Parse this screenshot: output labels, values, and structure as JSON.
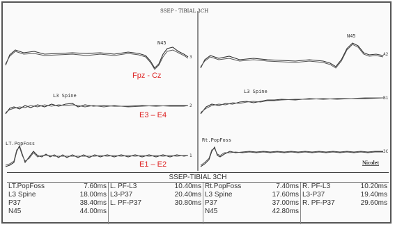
{
  "window": {
    "title": "SSEP - TIBIAL 3CH"
  },
  "left_panel": {
    "labels": {
      "n45": "N45",
      "l3_spine": "L3 Spine",
      "popfoss": "LT.PopFoss",
      "fpz_cz": "Fpz - Cz",
      "e3_e4": "E3 – E4",
      "e1_e2": "E1 – E2"
    },
    "channel_numbers": [
      "3",
      "2",
      "1"
    ]
  },
  "right_panel": {
    "labels": {
      "n45": "N45",
      "l3_spine": "L3 Spine",
      "popfoss": "Rt.PopFoss"
    },
    "channel_numbers": [
      "A2",
      "B1",
      "3C"
    ],
    "brand": "Nicolet"
  },
  "table": {
    "title": "SSEP-TIBIAL 3CH",
    "columns": [
      [
        [
          "LT.PopFoss",
          "7.60ms"
        ],
        [
          "L3 Spine",
          "18.00ms"
        ],
        [
          "P37",
          "38.40ms"
        ],
        [
          "N45",
          "44.00ms"
        ]
      ],
      [
        [
          "L. PF-L3",
          "10.40ms"
        ],
        [
          "L3-P37",
          "20.40ms"
        ],
        [
          "L. PF-P37",
          "30.80ms"
        ]
      ],
      [
        [
          "Rt.PopFoss",
          "7.40ms"
        ],
        [
          "L3 Spine",
          "17.60ms"
        ],
        [
          "P37",
          "37.00ms"
        ],
        [
          "N45",
          "42.80ms"
        ]
      ],
      [
        [
          "R. PF-L3",
          "10.20ms"
        ],
        [
          "L3-P37",
          "19.40ms"
        ],
        [
          "R. PF-P37",
          "29.60ms"
        ]
      ]
    ]
  }
}
